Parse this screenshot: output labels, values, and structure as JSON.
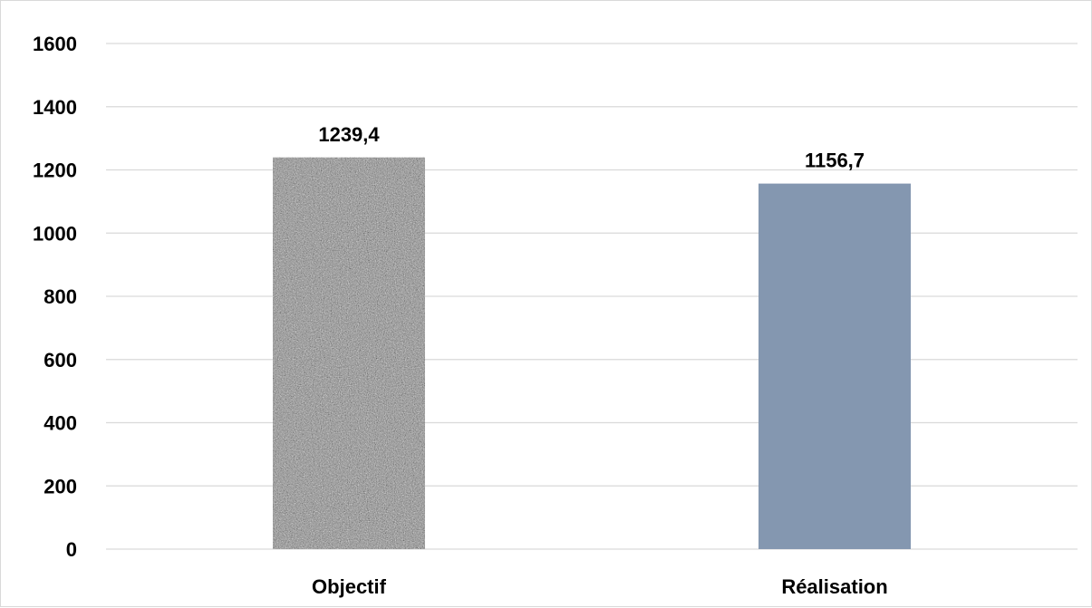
{
  "chart_data": {
    "type": "bar",
    "title": "",
    "xlabel": "",
    "ylabel": "",
    "categories": [
      "Objectif",
      "Réalisation"
    ],
    "values": [
      1239.4,
      1156.7
    ],
    "data_labels": [
      "1239,4",
      "1156,7"
    ],
    "ylim": [
      0,
      1600
    ],
    "yticks": [
      0,
      200,
      400,
      600,
      800,
      1000,
      1200,
      1400,
      1600
    ],
    "grid": true,
    "legend": "none",
    "bar_styles": [
      {
        "fill": "granite-texture",
        "color": "#8a8a8a"
      },
      {
        "fill": "solid",
        "color": "#8497b0"
      }
    ]
  }
}
